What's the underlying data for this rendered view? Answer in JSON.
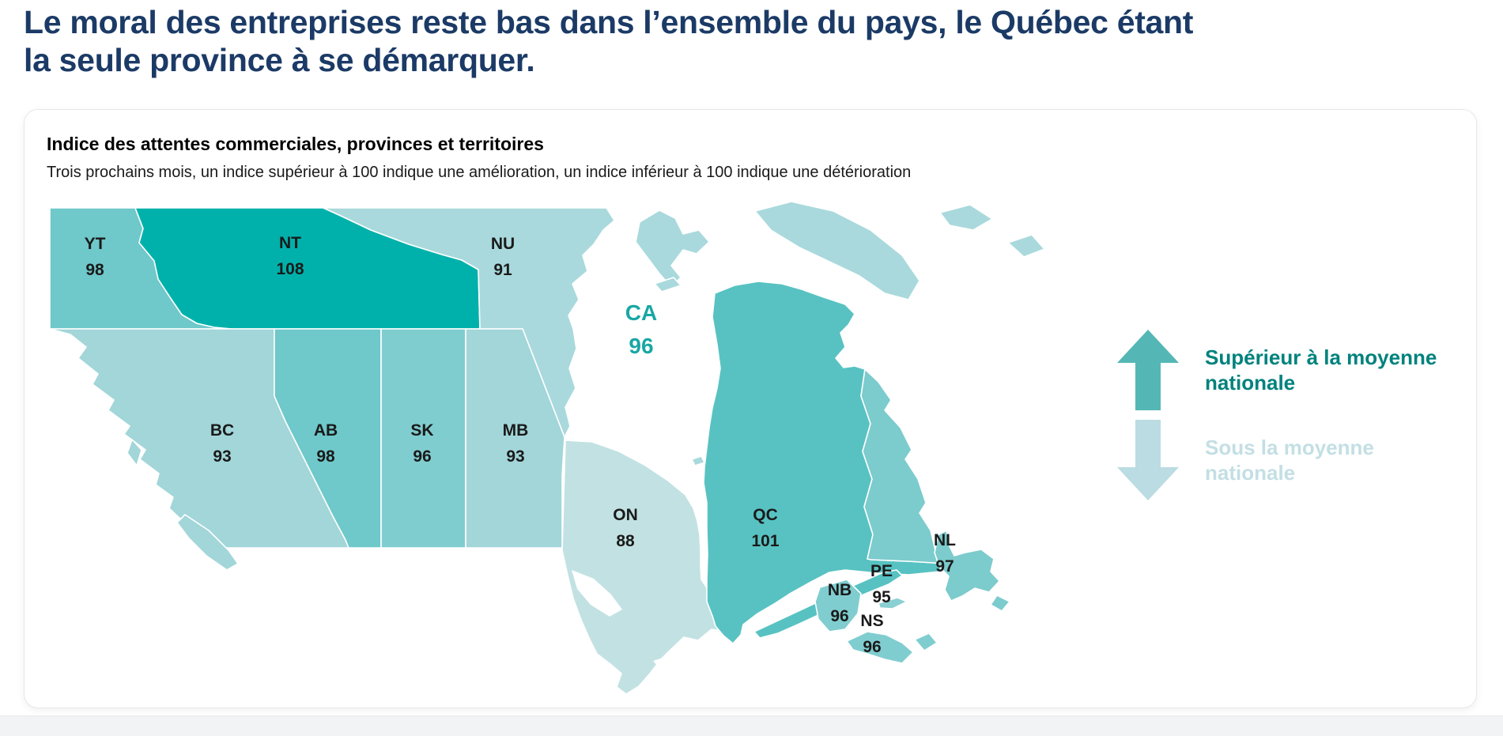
{
  "page": {
    "title": "Le moral des entreprises reste bas dans l’ensemble du pays, le Québec étant la seule province à se démarquer."
  },
  "card": {
    "heading": "Indice des attentes commerciales, provinces et territoires",
    "subheading": "Trois prochains mois, un indice supérieur à 100 indique une amélioration, un indice inférieur à 100 indique une détérioration"
  },
  "legend": {
    "above_label": "Supérieur à la moyenne nationale",
    "below_label": "Sous la moyenne nationale",
    "above_arrow_color": "#54b7b5",
    "above_text_color": "#00827d",
    "below_arrow_color": "#badce2",
    "below_text_color": "#c3dfe4"
  },
  "chart_data": {
    "type": "choropleth-map",
    "title": "Indice des attentes commerciales, provinces et territoires",
    "subtitle": "Trois prochains mois, un indice supérieur à 100 indique une amélioration, un indice inférieur à 100 indique une détérioration",
    "national_average": {
      "code": "CA",
      "value": 96,
      "label_color": "#18a7a4"
    },
    "regions": [
      {
        "code": "YT",
        "value": 98,
        "color": "#6fc8ca"
      },
      {
        "code": "NT",
        "value": 108,
        "color": "#00b1ab"
      },
      {
        "code": "NU",
        "value": 91,
        "color": "#a9d9dc"
      },
      {
        "code": "BC",
        "value": 93,
        "color": "#a2d6d9"
      },
      {
        "code": "AB",
        "value": 98,
        "color": "#6fc8ca"
      },
      {
        "code": "SK",
        "value": 96,
        "color": "#80cdd0"
      },
      {
        "code": "MB",
        "value": 93,
        "color": "#a2d6d9"
      },
      {
        "code": "ON",
        "value": 88,
        "color": "#c2e1e3"
      },
      {
        "code": "QC",
        "value": 101,
        "color": "#58c2c2"
      },
      {
        "code": "NB",
        "value": 96,
        "color": "#80cdd0"
      },
      {
        "code": "PE",
        "value": 95,
        "color": "#8ad0d3"
      },
      {
        "code": "NS",
        "value": 96,
        "color": "#80cdd0"
      },
      {
        "code": "NL",
        "value": 97,
        "color": "#7ccbcd"
      }
    ],
    "legend_entries": [
      "Supérieur à la moyenne nationale",
      "Sous la moyenne nationale"
    ]
  }
}
